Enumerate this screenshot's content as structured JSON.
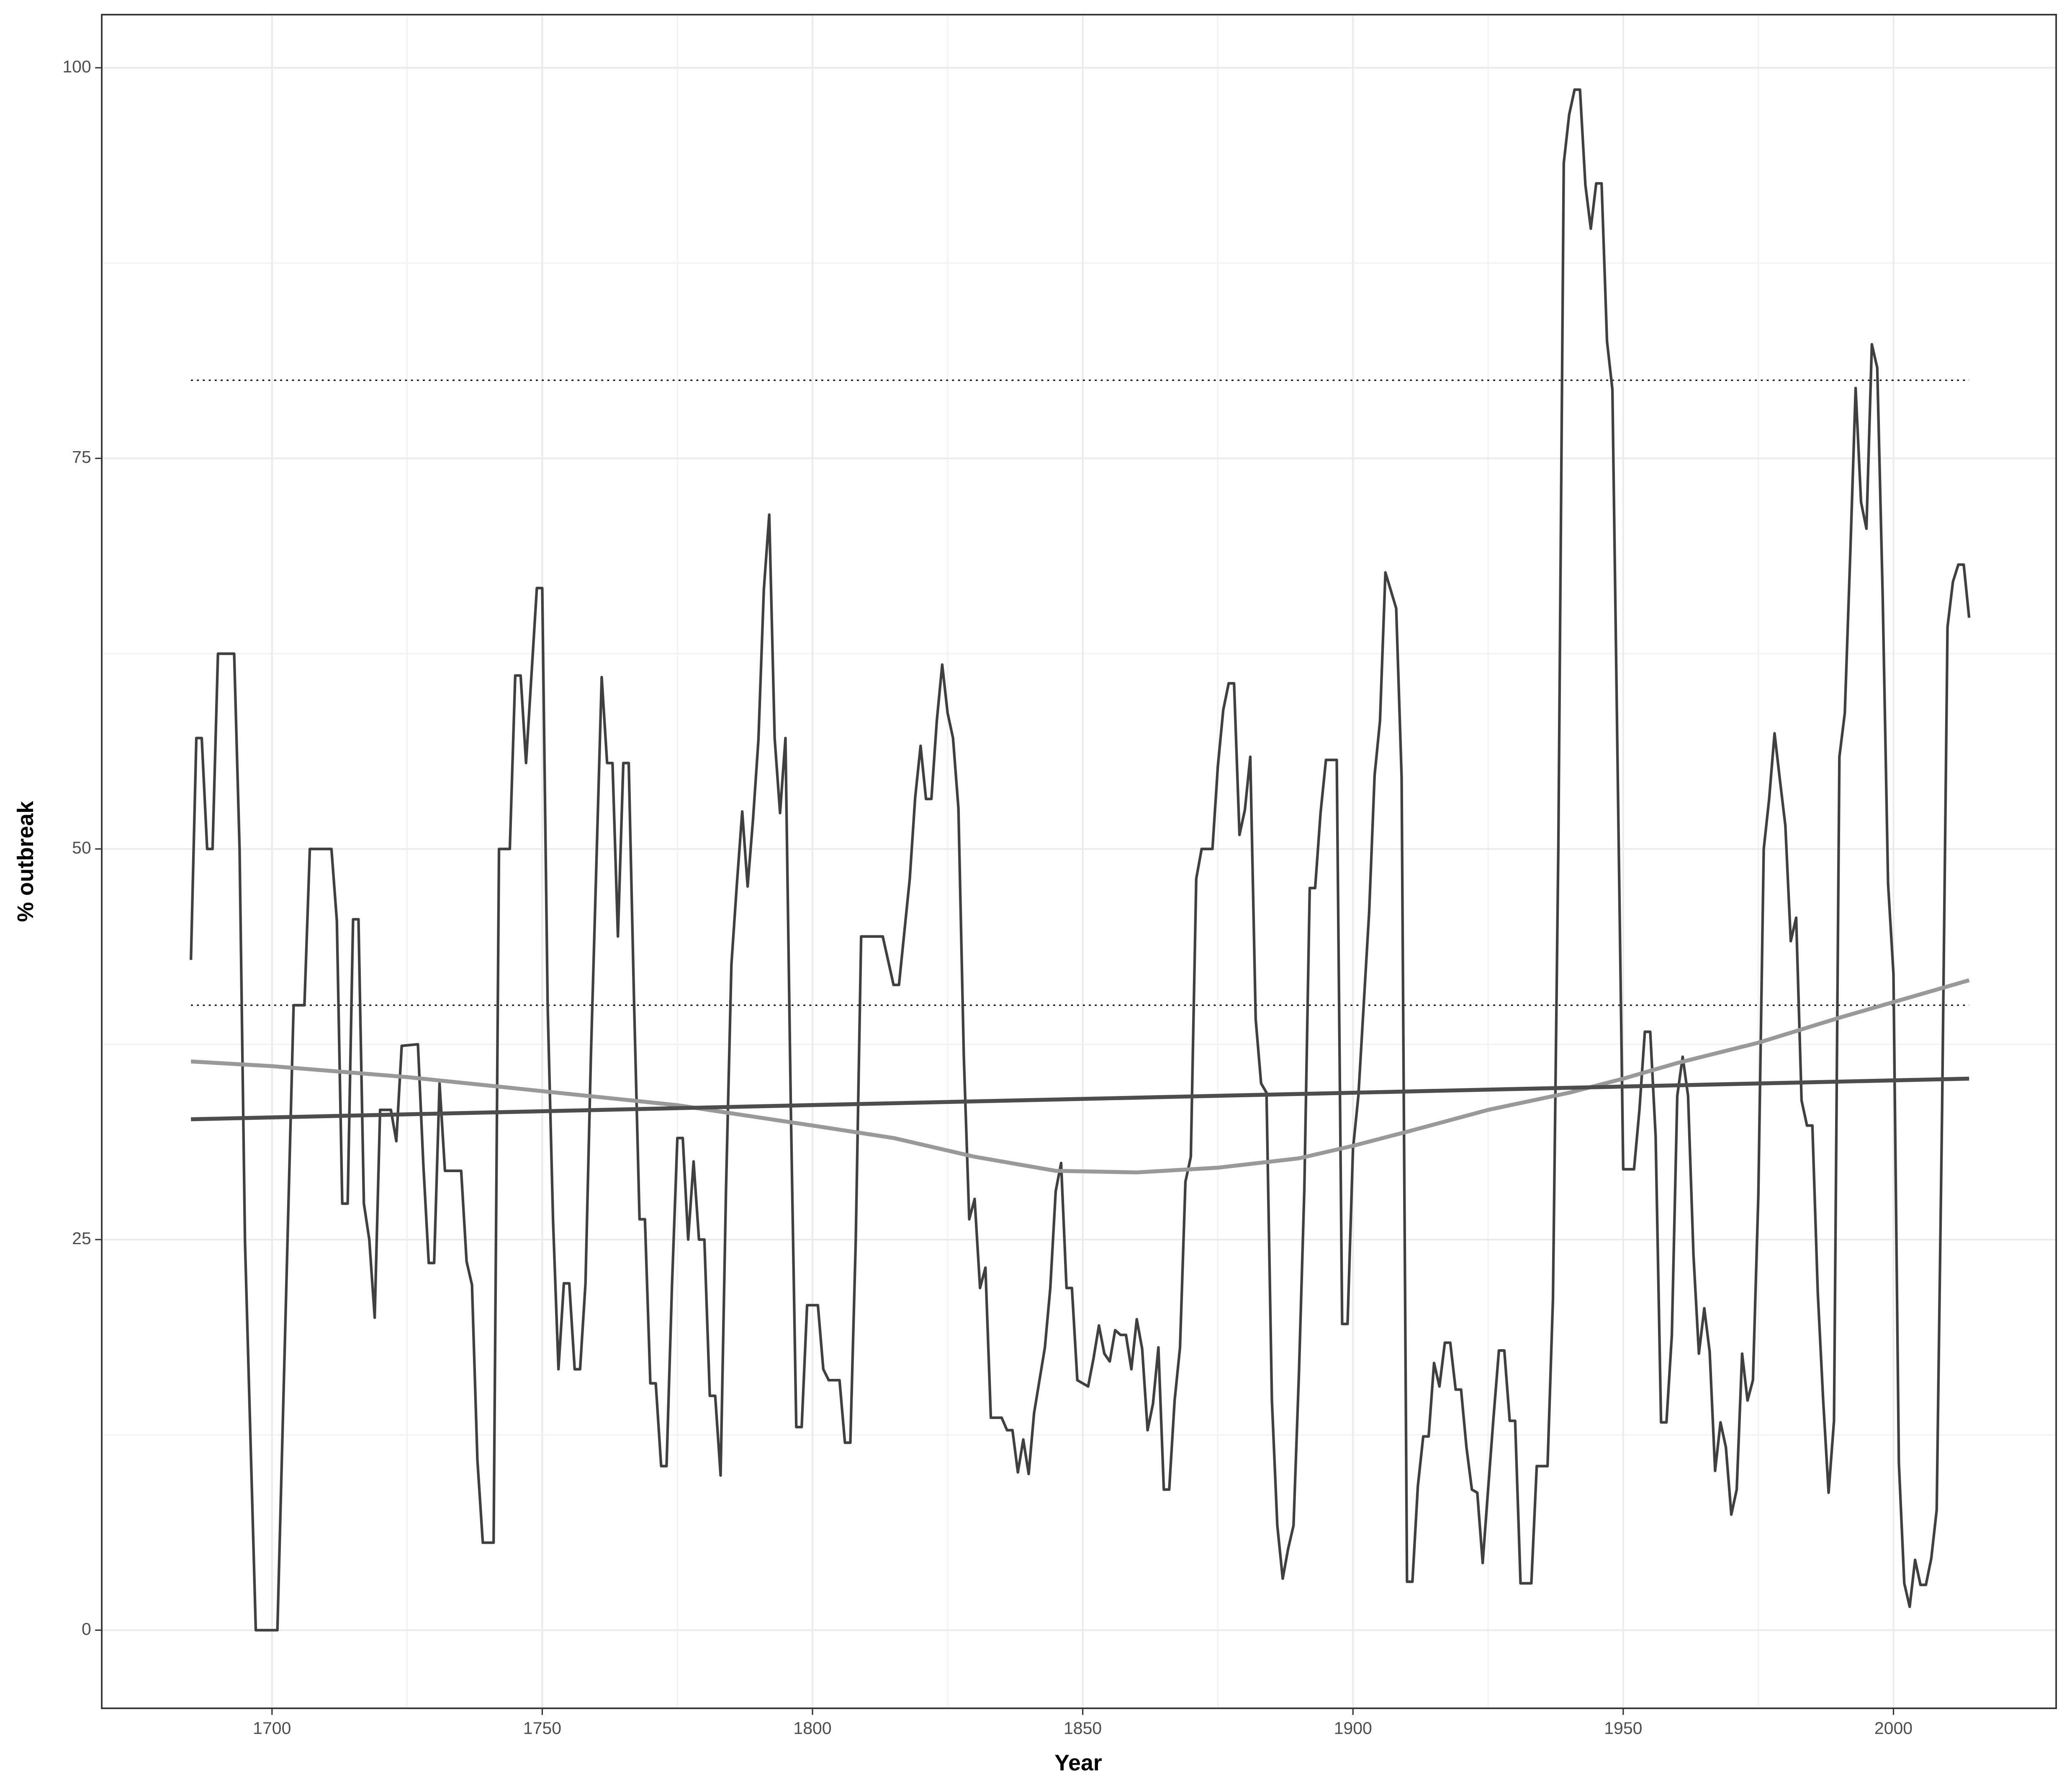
{
  "chart_data": {
    "type": "line",
    "x_label": "Year",
    "y_label": "% outbreak",
    "xlim": [
      1668.5,
      2030.1
    ],
    "ylim": [
      -5,
      103.4
    ],
    "xticks": [
      1700,
      1750,
      1800,
      1850,
      1900,
      1950,
      2000
    ],
    "yticks": [
      0,
      25,
      50,
      75,
      100
    ],
    "grid": true,
    "minor_grid": true,
    "series": [
      {
        "color": "#404040",
        "x": [
          1685,
          1686,
          1687,
          1688,
          1689,
          1690,
          1693,
          1694,
          1695,
          1697,
          1701,
          1704,
          1706,
          1707,
          1711,
          1712,
          1713,
          1714,
          1715,
          1716,
          1717,
          1718,
          1719,
          1720,
          1722,
          1723,
          1724,
          1727,
          1728,
          1729,
          1730,
          1731,
          1732,
          1735,
          1736,
          1737,
          1738,
          1739,
          1741,
          1742,
          1744,
          1745,
          1746,
          1747,
          1748,
          1749,
          1750,
          1751,
          1752,
          1753,
          1754,
          1755,
          1756,
          1757,
          1758,
          1759,
          1761,
          1762,
          1763,
          1764,
          1765,
          1766,
          1767,
          1768,
          1769,
          1770,
          1771,
          1772,
          1773,
          1774,
          1775,
          1776,
          1777,
          1778,
          1779,
          1780,
          1781,
          1782,
          1783,
          1784,
          1785,
          1786,
          1787,
          1788,
          1789,
          1790,
          1791,
          1792,
          1793,
          1794,
          1795,
          1796,
          1797,
          1798,
          1799,
          1801,
          1802,
          1803,
          1805,
          1806,
          1807,
          1808,
          1809,
          1813,
          1815,
          1816,
          1818,
          1819,
          1820,
          1821,
          1822,
          1823,
          1824,
          1825,
          1826,
          1827,
          1828,
          1829,
          1830,
          1831,
          1832,
          1833,
          1835,
          1836,
          1837,
          1838,
          1839,
          1840,
          1841,
          1843,
          1844,
          1845,
          1846,
          1847,
          1848,
          1849,
          1851,
          1852,
          1853,
          1854,
          1855,
          1856,
          1857,
          1858,
          1859,
          1860,
          1861,
          1862,
          1863,
          1864,
          1865,
          1866,
          1867,
          1868,
          1869,
          1870,
          1871,
          1872,
          1874,
          1875,
          1876,
          1877,
          1878,
          1879,
          1880,
          1881,
          1882,
          1883,
          1884,
          1885,
          1886,
          1887,
          1888,
          1889,
          1890,
          1891,
          1892,
          1893,
          1894,
          1895,
          1897,
          1898,
          1899,
          1900,
          1901,
          1902,
          1903,
          1904,
          1905,
          1906,
          1908,
          1909,
          1910,
          1911,
          1912,
          1913,
          1914,
          1915,
          1916,
          1917,
          1918,
          1919,
          1920,
          1921,
          1922,
          1923,
          1924,
          1925,
          1926,
          1927,
          1928,
          1929,
          1930,
          1931,
          1933,
          1934,
          1936,
          1937,
          1938,
          1939,
          1940,
          1941,
          1942,
          1943,
          1944,
          1945,
          1946,
          1947,
          1948,
          1949,
          1950,
          1952,
          1953,
          1954,
          1955,
          1956,
          1957,
          1958,
          1959,
          1960,
          1961,
          1962,
          1963,
          1964,
          1965,
          1966,
          1967,
          1968,
          1969,
          1970,
          1971,
          1972,
          1973,
          1974,
          1975,
          1976,
          1977,
          1978,
          1979,
          1980,
          1981,
          1982,
          1983,
          1984,
          1985,
          1986,
          1987,
          1988,
          1989,
          1990,
          1991,
          1992,
          1993,
          1994,
          1995,
          1996,
          1997,
          1998,
          1999,
          2000,
          2001,
          2002,
          2003,
          2004,
          2005,
          2006,
          2007,
          2008,
          2009,
          2010,
          2011,
          2012,
          2013,
          2014
        ],
        "values": [
          42.9,
          57.1,
          57.1,
          50,
          50,
          62.5,
          62.5,
          50,
          24.9,
          0,
          0,
          40,
          40,
          50,
          50,
          45.4,
          27.3,
          27.3,
          45.5,
          45.5,
          27.3,
          25,
          20,
          33.3,
          33.3,
          31.3,
          37.4,
          37.5,
          29.8,
          23.5,
          23.5,
          35,
          29.4,
          29.4,
          23.6,
          22.1,
          10.9,
          5.6,
          5.6,
          50,
          50,
          61.1,
          61.1,
          55.5,
          61.1,
          66.7,
          66.7,
          40,
          26.2,
          16.7,
          22.2,
          22.2,
          16.7,
          16.7,
          22.2,
          36.7,
          61,
          55.5,
          55.5,
          44.4,
          55.5,
          55.5,
          40,
          26.3,
          26.3,
          15.8,
          15.8,
          10.5,
          10.5,
          22,
          31.5,
          31.5,
          25,
          30,
          25,
          25,
          15,
          15,
          9.9,
          28.2,
          42.6,
          47.7,
          52.4,
          47.6,
          51.9,
          57,
          66.6,
          71.4,
          57.1,
          52.3,
          57.1,
          33.3,
          13,
          13,
          20.8,
          20.8,
          16.7,
          16,
          16,
          12,
          12,
          24.9,
          44.4,
          44.4,
          41.3,
          41.3,
          48.1,
          53.3,
          56.6,
          53.2,
          53.2,
          58.2,
          61.8,
          58.7,
          57.1,
          52.6,
          36.7,
          26.3,
          27.6,
          21.9,
          23.2,
          13.6,
          13.6,
          12.8,
          12.8,
          10.1,
          12.2,
          10,
          13.9,
          18.1,
          21.9,
          28.1,
          29.9,
          21.9,
          21.9,
          16,
          15.6,
          17.4,
          19.5,
          17.7,
          17.2,
          19.2,
          18.9,
          18.9,
          16.7,
          19.9,
          18,
          12.8,
          14.5,
          18.1,
          9,
          9,
          14.7,
          18.1,
          28.7,
          30.3,
          48.1,
          50,
          50,
          55.3,
          58.9,
          60.6,
          60.6,
          50.9,
          52.5,
          55.9,
          39.1,
          35,
          34.4,
          14.7,
          6.7,
          3.3,
          5.2,
          6.7,
          16.4,
          28.2,
          47.5,
          47.5,
          52.3,
          55.7,
          55.7,
          19.6,
          19.6,
          30.8,
          34.2,
          40.1,
          46,
          54.7,
          58.2,
          67.7,
          65.4,
          54.6,
          3.1,
          3.1,
          9.2,
          12.4,
          12.4,
          17.1,
          15.6,
          18.4,
          18.4,
          15.4,
          15.4,
          11.7,
          9,
          8.8,
          4.3,
          9,
          13.6,
          17.9,
          17.9,
          13.4,
          13.4,
          3,
          3,
          10.5,
          10.5,
          21.2,
          50.2,
          93.9,
          97,
          98.6,
          98.6,
          92.5,
          89.7,
          92.6,
          92.6,
          82.5,
          79.4,
          54.4,
          29.5,
          29.5,
          33.3,
          38.3,
          38.3,
          31.6,
          13.3,
          13.3,
          18.9,
          34.2,
          36.7,
          34.2,
          24,
          17.7,
          20.6,
          17.8,
          10.2,
          13.3,
          11.7,
          7.4,
          9,
          17.7,
          14.7,
          16,
          27.8,
          50,
          53.2,
          57.4,
          54.4,
          51.5,
          44.1,
          45.6,
          33.9,
          32.3,
          32.3,
          21.6,
          14.7,
          8.8,
          13.4,
          55.9,
          58.7,
          68.8,
          79.5,
          72.2,
          70.5,
          82.3,
          80.8,
          66.3,
          47.8,
          42,
          10.7,
          3,
          1.5,
          4.5,
          2.9,
          2.9,
          4.6,
          7.7,
          33.3,
          64.2,
          67.1,
          68.2,
          68.2,
          64.8
        ]
      },
      {
        "color": "#999999",
        "x": [
          1685,
          1700,
          1725,
          1750,
          1775,
          1800,
          1815,
          1830,
          1845,
          1860,
          1875,
          1890,
          1900,
          1910,
          1925,
          1940,
          1950,
          1960,
          1975,
          1990,
          2000,
          2014
        ],
        "values": [
          36.4,
          36.1,
          35.4,
          34.5,
          33.6,
          32.3,
          31.5,
          30.3,
          29.4,
          29.3,
          29.6,
          30.2,
          31,
          31.9,
          33.3,
          34.4,
          35.3,
          36.3,
          37.6,
          39.2,
          40.2,
          41.6
        ]
      },
      {
        "color": "#4d4d4d",
        "x": [
          1685,
          2014
        ],
        "values": [
          32.7,
          35.3
        ]
      }
    ],
    "hlines": [
      {
        "value": 80,
        "x": [
          1685,
          2014
        ],
        "style": "dotted",
        "color": "#000000"
      },
      {
        "value": 40,
        "x": [
          1685,
          2014
        ],
        "style": "dotted",
        "color": "#000000"
      }
    ]
  }
}
